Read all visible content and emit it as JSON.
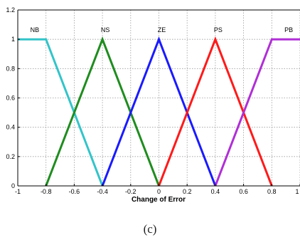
{
  "chart_data": {
    "type": "line",
    "xlabel": "Change of Error",
    "ylabel": "",
    "xlim": [
      -1,
      1
    ],
    "ylim": [
      0,
      1.2
    ],
    "xticks": [
      -1,
      -0.8,
      -0.6,
      -0.4,
      -0.2,
      0,
      0.2,
      0.4,
      0.6,
      0.8,
      1
    ],
    "xtick_labels": [
      "-1",
      "-0.8",
      "-0.6",
      "-0.4",
      "-0.2",
      "0",
      "0.2",
      "0.4",
      "0.6",
      "0.8",
      "1"
    ],
    "yticks": [
      0,
      0.2,
      0.4,
      0.6,
      0.8,
      1,
      1.2
    ],
    "ytick_labels": [
      "0",
      "0.2",
      "0.4",
      "0.6",
      "0.8",
      "1",
      "1.2"
    ],
    "grid": true,
    "series": [
      {
        "name": "NB",
        "color": "#33c4c9",
        "x": [
          -1,
          -0.8,
          -0.4
        ],
        "y": [
          1,
          1,
          0
        ]
      },
      {
        "name": "NS",
        "color": "#1f8c1f",
        "x": [
          -0.8,
          -0.4,
          0
        ],
        "y": [
          0,
          1,
          0
        ]
      },
      {
        "name": "ZE",
        "color": "#1a1aff",
        "x": [
          -0.4,
          0,
          0.4
        ],
        "y": [
          0,
          1,
          0
        ]
      },
      {
        "name": "PS",
        "color": "#ff1a1a",
        "x": [
          0,
          0.4,
          0.8
        ],
        "y": [
          0,
          1,
          0
        ]
      },
      {
        "name": "PB",
        "color": "#b02fd6",
        "x": [
          0.4,
          0.8,
          1
        ],
        "y": [
          0,
          1,
          1
        ]
      }
    ]
  },
  "caption": "(c)"
}
